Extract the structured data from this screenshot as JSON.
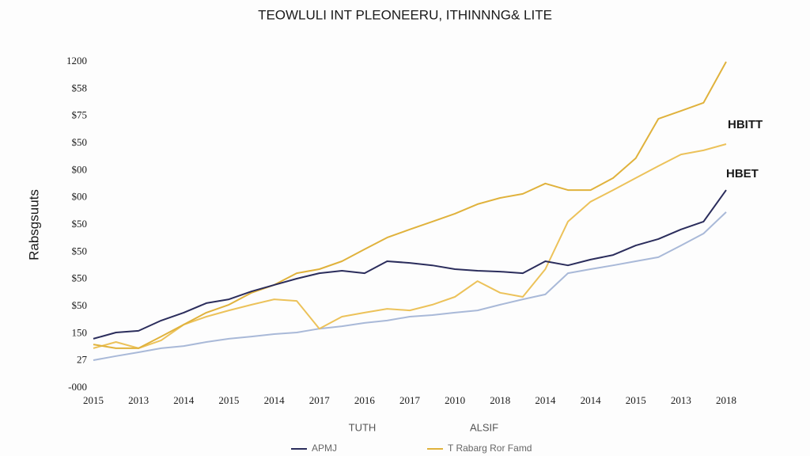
{
  "chart_data": {
    "type": "line",
    "title": "TEOWLULI INT PLEONEERU, ITHINNNG& LITE",
    "y_label": "Rabsgsuuts",
    "x_labels": [
      "TUTH",
      "ALSIF"
    ],
    "categories": [
      "2015",
      null,
      "2013",
      null,
      "2014",
      null,
      "2015",
      null,
      "2014",
      null,
      "2017",
      null,
      "2016",
      null,
      "2017",
      null,
      "2010",
      null,
      "2018",
      null,
      "2014",
      null,
      "2014",
      null,
      "2015",
      null,
      "2013",
      null,
      "2018"
    ],
    "ylim": [
      0,
      12
    ],
    "yticks": [
      {
        "value": 0,
        "label": "-000"
      },
      {
        "value": 1,
        "label": "27"
      },
      {
        "value": 2,
        "label": "150"
      },
      {
        "value": 3,
        "label": "$50"
      },
      {
        "value": 4,
        "label": "$50"
      },
      {
        "value": 5,
        "label": "$50"
      },
      {
        "value": 6,
        "label": "$50"
      },
      {
        "value": 7,
        "label": "$00"
      },
      {
        "value": 8,
        "label": "$00"
      },
      {
        "value": 9,
        "label": "$50"
      },
      {
        "value": 10,
        "label": "$75"
      },
      {
        "value": 11,
        "label": "$58"
      },
      {
        "value": 12,
        "label": "1200"
      }
    ],
    "series": [
      {
        "name": "APMJ",
        "color": "#2b2d5c",
        "values": [
          1.81,
          2.04,
          2.1,
          2.48,
          2.77,
          3.12,
          3.26,
          3.55,
          3.79,
          4.02,
          4.22,
          4.31,
          4.22,
          4.66,
          4.6,
          4.51,
          4.37,
          4.31,
          4.28,
          4.22,
          4.66,
          4.51,
          4.72,
          4.89,
          5.24,
          5.48,
          5.83,
          6.12,
          7.28
        ]
      },
      {
        "name": "T Rabarg Ror Famd",
        "color": "#e0b23c",
        "values": [
          1.6,
          1.46,
          1.46,
          1.89,
          2.33,
          2.77,
          3.06,
          3.5,
          3.79,
          4.22,
          4.37,
          4.66,
          5.1,
          5.53,
          5.83,
          6.12,
          6.41,
          6.76,
          6.99,
          7.14,
          7.52,
          7.28,
          7.28,
          7.72,
          8.45,
          9.9,
          10.19,
          10.49,
          12.0
        ]
      },
      {
        "color": "#a9b9d8",
        "values": [
          1.02,
          1.17,
          1.31,
          1.46,
          1.54,
          1.69,
          1.81,
          1.89,
          1.98,
          2.04,
          2.18,
          2.27,
          2.39,
          2.48,
          2.62,
          2.68,
          2.77,
          2.85,
          3.06,
          3.26,
          3.44,
          4.22,
          4.37,
          4.51,
          4.66,
          4.81,
          5.24,
          5.68,
          6.47
        ]
      },
      {
        "color": "#ecc25a",
        "values": [
          1.46,
          1.69,
          1.46,
          1.75,
          2.33,
          2.62,
          2.85,
          3.06,
          3.26,
          3.2,
          2.18,
          2.62,
          2.77,
          2.91,
          2.85,
          3.06,
          3.35,
          3.93,
          3.5,
          3.35,
          4.37,
          6.12,
          6.85,
          7.28,
          7.72,
          8.16,
          8.59,
          8.74,
          8.97
        ]
      }
    ],
    "annotations": [
      {
        "text": "HBITT",
        "color": "#e0a92a"
      },
      {
        "text": "HBET",
        "color": "#2b2d5c"
      }
    ]
  }
}
